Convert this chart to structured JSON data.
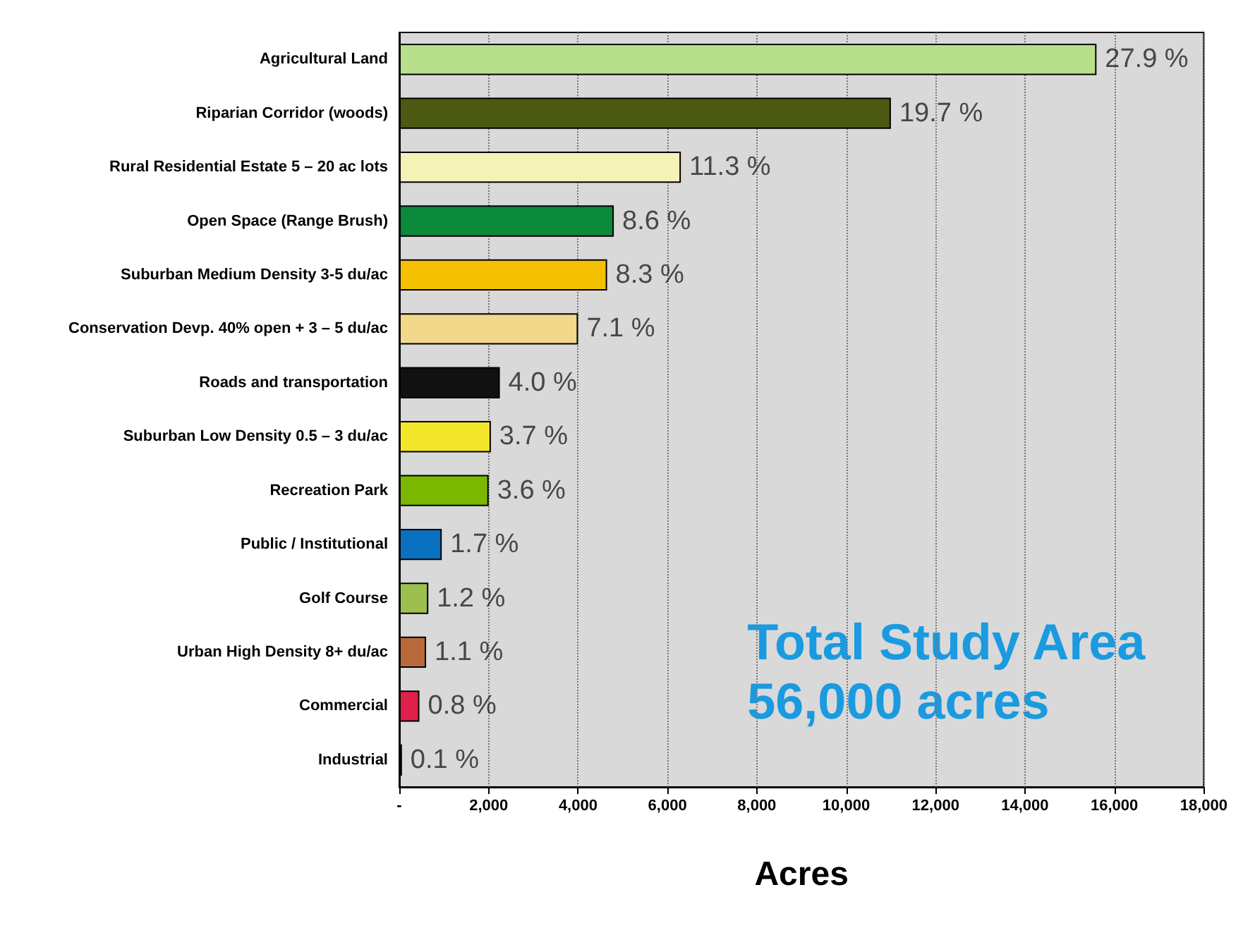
{
  "chart_data": {
    "type": "bar",
    "orientation": "horizontal",
    "xlabel": "Acres",
    "categories": [
      "Agricultural Land",
      "Riparian Corridor (woods)",
      "Rural Residential Estate 5 – 20 ac lots",
      "Open Space (Range Brush)",
      "Suburban Medium Density 3-5 du/ac",
      "Conservation Devp. 40% open + 3 – 5 du/ac",
      "Roads and transportation",
      "Suburban Low Density 0.5 – 3 du/ac",
      "Recreation Park",
      "Public / Institutional",
      "Golf Course",
      "Urban High Density 8+ du/ac",
      "Commercial",
      "Industrial"
    ],
    "values": [
      15600,
      11000,
      6300,
      4800,
      4650,
      4000,
      2250,
      2050,
      2000,
      950,
      650,
      600,
      450,
      60
    ],
    "colors": [
      "#b8e08a",
      "#4d5a14",
      "#f5f2b8",
      "#0a8a3a",
      "#f5c000",
      "#f2d88a",
      "#111111",
      "#f2e62a",
      "#7ab800",
      "#0a70c0",
      "#9cc050",
      "#b86a3a",
      "#e0204a",
      "#333333"
    ],
    "xlim": [
      0,
      18000
    ],
    "xticks": [
      {
        "value": 0,
        "label": "-"
      },
      {
        "value": 2000,
        "label": "2,000"
      },
      {
        "value": 4000,
        "label": "4,000"
      },
      {
        "value": 6000,
        "label": "6,000"
      },
      {
        "value": 8000,
        "label": "8,000"
      },
      {
        "value": 10000,
        "label": "10,000"
      },
      {
        "value": 12000,
        "label": "12,000"
      },
      {
        "value": 14000,
        "label": "14,000"
      },
      {
        "value": 16000,
        "label": "16,000"
      },
      {
        "value": 18000,
        "label": "18,000"
      }
    ],
    "grid": "x",
    "annotations": [
      "Total Study Area\n56,000 acres",
      {
        "text": "27.9 %",
        "x": 15600,
        "y": "Agricultural Land"
      },
      {
        "text": "19.7 %",
        "x": 11000,
        "y": "Riparian Corridor (woods)"
      },
      {
        "text": "11.3 %",
        "x": 6300,
        "y": "Rural Residential Estate 5 – 20 ac lots"
      },
      {
        "text": "8.6 %",
        "x": 4800,
        "y": "Open Space (Range Brush)"
      },
      {
        "text": "8.3 %",
        "x": 4650,
        "y": "Suburban Medium Density 3-5 du/ac"
      },
      {
        "text": "7.1 %",
        "x": 4000,
        "y": "Conservation Devp. 40% open + 3 – 5 du/ac"
      },
      {
        "text": "4.0 %",
        "x": 2250,
        "y": "Roads and transportation"
      },
      {
        "text": "3.7 %",
        "x": 2050,
        "y": "Suburban Low Density 0.5 – 3 du/ac"
      },
      {
        "text": "3.6 %",
        "x": 2000,
        "y": "Recreation Park"
      },
      {
        "text": "1.7 %",
        "x": 950,
        "y": "Public / Institutional"
      },
      {
        "text": "1.2 %",
        "x": 650,
        "y": "Golf Course"
      },
      {
        "text": "1.1 %",
        "x": 600,
        "y": "Urban High Density 8+ du/ac"
      },
      {
        "text": "0.8 %",
        "x": 450,
        "y": "Commercial"
      },
      {
        "text": "0.1 %",
        "x": 60,
        "y": "Industrial"
      }
    ]
  }
}
